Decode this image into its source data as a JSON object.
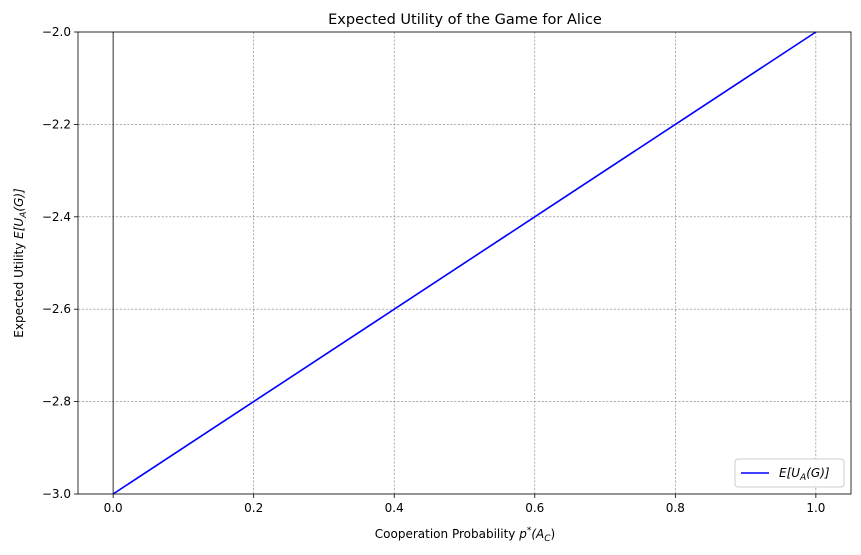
{
  "chart_data": {
    "type": "line",
    "title": "Expected Utility of the Game for Alice",
    "xlabel": "Cooperation Probability p*(A_C)",
    "xlabel_parts": {
      "main": "Cooperation Probability ",
      "var": "p",
      "sup": "*",
      "open": "(A",
      "sub": "C",
      "close": ")"
    },
    "ylabel": "Expected Utility E[U_A(G)]",
    "ylabel_parts": {
      "main": "Expected Utility ",
      "pre": "E[U",
      "sub": "A",
      "post": "(G)]"
    },
    "xlim": [
      -0.05,
      1.05
    ],
    "ylim": [
      -3.0,
      -2.0
    ],
    "xticks": [
      0.0,
      0.2,
      0.4,
      0.6,
      0.8,
      1.0
    ],
    "xtick_labels": [
      "0.0",
      "0.2",
      "0.4",
      "0.6",
      "0.8",
      "1.0"
    ],
    "yticks": [
      -3.0,
      -2.8,
      -2.6,
      -2.4,
      -2.2,
      -2.0
    ],
    "ytick_labels": [
      "−3.0",
      "−2.8",
      "−2.6",
      "−2.4",
      "−2.2",
      "−2.0"
    ],
    "grid": true,
    "legend_position": "lower-right",
    "series": [
      {
        "name": "E[U_A(G)]",
        "name_parts": {
          "pre": "E[U",
          "sub": "A",
          "post": "(G)]"
        },
        "color": "#0000ff",
        "x": [
          0.0,
          0.2,
          0.4,
          0.6,
          0.8,
          1.0
        ],
        "y": [
          -3.0,
          -2.8,
          -2.6,
          -2.4,
          -2.2,
          -2.0
        ]
      }
    ]
  }
}
